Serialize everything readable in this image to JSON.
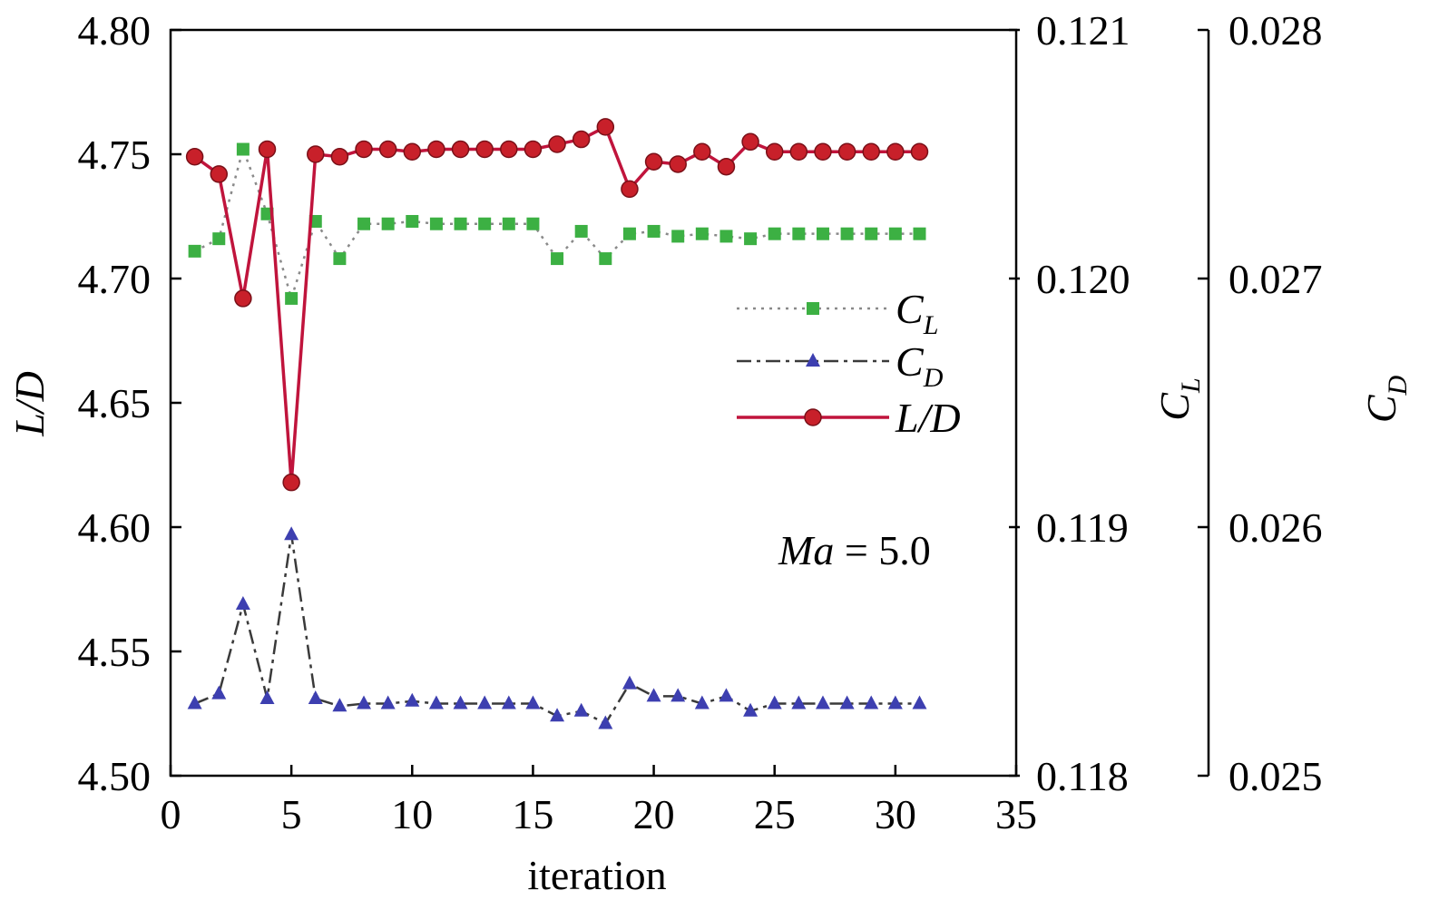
{
  "chart_data": {
    "type": "line",
    "x": [
      1,
      2,
      3,
      4,
      5,
      6,
      7,
      8,
      9,
      10,
      11,
      12,
      13,
      14,
      15,
      16,
      17,
      18,
      19,
      20,
      21,
      22,
      23,
      24,
      25,
      26,
      27,
      28,
      29,
      30,
      31
    ],
    "xlabel": "iteration",
    "xlim": [
      0,
      35
    ],
    "xticks": [
      "0",
      "5",
      "10",
      "15",
      "20",
      "25",
      "30",
      "35"
    ],
    "y_axes": [
      {
        "id": "LD",
        "label": "L/D",
        "lim": [
          4.5,
          4.8
        ],
        "ticks": [
          "4.50",
          "4.55",
          "4.60",
          "4.65",
          "4.70",
          "4.75",
          "4.80"
        ],
        "position": "left"
      },
      {
        "id": "CL",
        "label_main": "C",
        "label_sub": "L",
        "lim": [
          0.118,
          0.121
        ],
        "ticks": [
          "0.118",
          "0.119",
          "0.120",
          "0.121"
        ],
        "position": "right"
      },
      {
        "id": "CD",
        "label_main": "C",
        "label_sub": "D",
        "lim": [
          0.025,
          0.028
        ],
        "ticks": [
          "0.025",
          "0.026",
          "0.027",
          "0.028"
        ],
        "position": "far-right"
      }
    ],
    "series": [
      {
        "name": "C",
        "sub": "L",
        "axis": "CL",
        "style": "dotted",
        "marker": "square",
        "line_color": "#8a8a8a",
        "marker_color": "#3cb043",
        "values": [
          0.12011,
          0.12016,
          0.12052,
          0.12026,
          0.11992,
          0.12023,
          0.12008,
          0.12022,
          0.12022,
          0.12023,
          0.12022,
          0.12022,
          0.12022,
          0.12022,
          0.12022,
          0.12008,
          0.12019,
          0.12008,
          0.12018,
          0.12019,
          0.12017,
          0.12018,
          0.12017,
          0.12016,
          0.12018,
          0.12018,
          0.12018,
          0.12018,
          0.12018,
          0.12018,
          0.12018
        ]
      },
      {
        "name": "C",
        "sub": "D",
        "axis": "CD",
        "style": "dashdot",
        "marker": "triangle",
        "line_color": "#3a3a3a",
        "marker_color": "#3d3fb0",
        "values": [
          0.02529,
          0.02533,
          0.02569,
          0.02531,
          0.02597,
          0.02531,
          0.02528,
          0.02529,
          0.02529,
          0.0253,
          0.02529,
          0.02529,
          0.02529,
          0.02529,
          0.02529,
          0.02524,
          0.02526,
          0.02521,
          0.02537,
          0.02532,
          0.02532,
          0.02529,
          0.02532,
          0.02526,
          0.02529,
          0.02529,
          0.02529,
          0.02529,
          0.02529,
          0.02529,
          0.02529
        ]
      },
      {
        "name": "L/D",
        "axis": "LD",
        "style": "solid",
        "marker": "circle",
        "line_color": "#c0143c",
        "marker_color": "#c8202a",
        "values": [
          4.749,
          4.742,
          4.692,
          4.752,
          4.618,
          4.75,
          4.749,
          4.752,
          4.752,
          4.751,
          4.752,
          4.752,
          4.752,
          4.752,
          4.752,
          4.754,
          4.756,
          4.761,
          4.736,
          4.747,
          4.746,
          4.751,
          4.745,
          4.755,
          4.751,
          4.751,
          4.751,
          4.751,
          4.751,
          4.751,
          4.751
        ]
      }
    ],
    "annotation": {
      "italic": "Ma",
      "rest": " = 5.0"
    },
    "legend_position": "right-center",
    "grid": false
  }
}
